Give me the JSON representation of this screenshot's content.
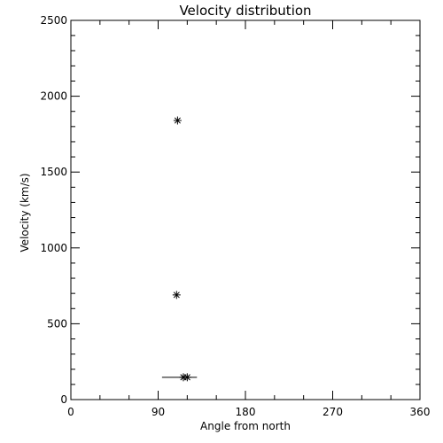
{
  "chart_data": {
    "type": "scatter",
    "title": "Velocity distribution",
    "xlabel": "Angle from north",
    "ylabel": "Velocity (km/s)",
    "xlim": [
      0,
      360
    ],
    "ylim": [
      0,
      2500
    ],
    "x_ticks": [
      0,
      90,
      180,
      270,
      360
    ],
    "y_ticks": [
      0,
      500,
      1000,
      1500,
      2000,
      2500
    ],
    "x_minor_step": 30,
    "y_minor_step": 100,
    "grid": false,
    "marker": "asterisk",
    "points": [
      {
        "x": 110,
        "y": 1840
      },
      {
        "x": 109,
        "y": 690
      },
      {
        "x": 116,
        "y": 147
      },
      {
        "x": 120,
        "y": 147
      }
    ],
    "error_bars": [
      {
        "x": 112,
        "y": 147,
        "xmin": 94,
        "xmax": 130
      }
    ]
  }
}
